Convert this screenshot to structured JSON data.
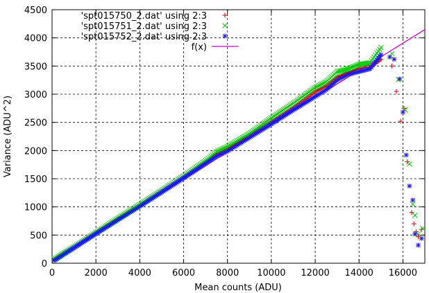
{
  "chart_data": {
    "type": "scatter",
    "title": "",
    "xlabel": "Mean counts (ADU)",
    "ylabel": "Variance (ADU^2)",
    "xlim": [
      0,
      17000
    ],
    "ylim": [
      0,
      4500
    ],
    "x_ticks": [
      0,
      2000,
      4000,
      6000,
      8000,
      10000,
      12000,
      14000,
      16000
    ],
    "y_ticks": [
      0,
      500,
      1000,
      1500,
      2000,
      2500,
      3000,
      3500,
      4000,
      4500
    ],
    "grid": true,
    "grid_style": "dashed",
    "legend_position": "top-left",
    "series": [
      {
        "name": "'spt015750_2.dat' using 2:3",
        "marker": "plus",
        "color": "#cc0000",
        "points": [
          [
            100,
            60
          ],
          [
            1000,
            280
          ],
          [
            2000,
            530
          ],
          [
            3000,
            780
          ],
          [
            4000,
            1020
          ],
          [
            5000,
            1270
          ],
          [
            6000,
            1520
          ],
          [
            7000,
            1790
          ],
          [
            7500,
            1940
          ],
          [
            8000,
            2020
          ],
          [
            9000,
            2250
          ],
          [
            10000,
            2510
          ],
          [
            11000,
            2760
          ],
          [
            12000,
            3050
          ],
          [
            12500,
            3150
          ],
          [
            13000,
            3300
          ],
          [
            13500,
            3380
          ],
          [
            14000,
            3460
          ],
          [
            14500,
            3480
          ],
          [
            15000,
            3620
          ],
          [
            15500,
            3500
          ],
          [
            15700,
            3050
          ],
          [
            15900,
            2520
          ],
          [
            16050,
            2750
          ],
          [
            16200,
            1800
          ],
          [
            16400,
            900
          ],
          [
            16500,
            700
          ],
          [
            16600,
            560
          ],
          [
            16700,
            470
          ],
          [
            16850,
            600
          ]
        ]
      },
      {
        "name": "'spt015751_2.dat' using 2:3",
        "marker": "cross",
        "color": "#00cc00",
        "points": [
          [
            100,
            70
          ],
          [
            1000,
            290
          ],
          [
            2000,
            545
          ],
          [
            3000,
            795
          ],
          [
            4000,
            1040
          ],
          [
            5000,
            1290
          ],
          [
            6000,
            1550
          ],
          [
            7000,
            1820
          ],
          [
            7500,
            1980
          ],
          [
            8000,
            2070
          ],
          [
            9000,
            2300
          ],
          [
            10000,
            2580
          ],
          [
            11000,
            2840
          ],
          [
            12000,
            3120
          ],
          [
            12500,
            3220
          ],
          [
            13000,
            3400
          ],
          [
            13500,
            3450
          ],
          [
            14000,
            3530
          ],
          [
            14500,
            3560
          ],
          [
            15000,
            3830
          ],
          [
            15500,
            3720
          ],
          [
            15800,
            3260
          ],
          [
            16100,
            2720
          ],
          [
            16300,
            1760
          ],
          [
            16450,
            1050
          ],
          [
            16550,
            850
          ],
          [
            16700,
            520
          ],
          [
            16900,
            620
          ]
        ]
      },
      {
        "name": "'spt015752_2.dat' using 2:3",
        "marker": "star",
        "color": "#1a1aee",
        "points": [
          [
            100,
            50
          ],
          [
            1000,
            275
          ],
          [
            2000,
            525
          ],
          [
            3000,
            770
          ],
          [
            4000,
            1010
          ],
          [
            5000,
            1260
          ],
          [
            6000,
            1510
          ],
          [
            7000,
            1770
          ],
          [
            7500,
            1900
          ],
          [
            8000,
            1990
          ],
          [
            9000,
            2230
          ],
          [
            10000,
            2470
          ],
          [
            11000,
            2720
          ],
          [
            12000,
            2960
          ],
          [
            12500,
            3080
          ],
          [
            13000,
            3250
          ],
          [
            13500,
            3350
          ],
          [
            14000,
            3400
          ],
          [
            14500,
            3450
          ],
          [
            15000,
            3700
          ],
          [
            15400,
            3660
          ],
          [
            15600,
            3620
          ],
          [
            15850,
            3270
          ],
          [
            16000,
            2680
          ],
          [
            16150,
            1920
          ],
          [
            16300,
            1370
          ],
          [
            16450,
            1120
          ],
          [
            16550,
            520
          ],
          [
            16700,
            320
          ],
          [
            16850,
            440
          ]
        ]
      }
    ],
    "fit": {
      "name": "f(x)",
      "color": "#cc00cc",
      "slope": 0.2416,
      "intercept": 40,
      "x_range": [
        0,
        17000
      ]
    }
  }
}
